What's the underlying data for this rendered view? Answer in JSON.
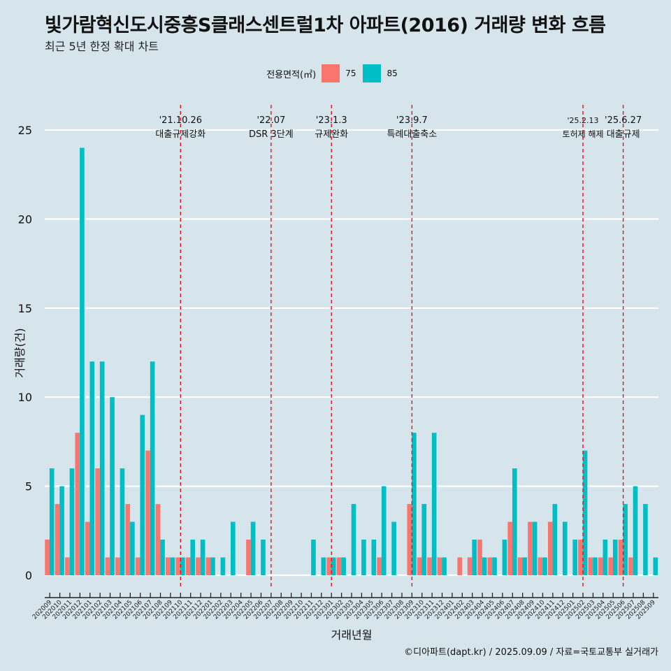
{
  "title": "빛가람혁신도시중흥S클래스센트럴1차 아파트(2016) 거래량 변화 흐름",
  "subtitle": "최근 5년 한정 확대 차트",
  "caption": "©디아파트(dapt.kr) / 2025.09.09 / 자료=국토교통부 실거래가",
  "legend": {
    "title": "전용면적(㎡)",
    "items": [
      {
        "label": "75",
        "color": "#f8766d"
      },
      {
        "label": "85",
        "color": "#00bfc4"
      }
    ]
  },
  "chart_data": {
    "type": "bar",
    "xlabel": "거래년월",
    "ylabel": "거래량(건)",
    "ylim": [
      0,
      25
    ],
    "yticks": [
      0,
      5,
      10,
      15,
      20,
      25
    ],
    "grid": true,
    "legend_position": "top",
    "categories": [
      "202009",
      "202010",
      "202011",
      "202012",
      "202101",
      "202102",
      "202103",
      "202104",
      "202105",
      "202106",
      "202107",
      "202108",
      "202109",
      "202110",
      "202111",
      "202112",
      "202201",
      "202202",
      "202203",
      "202204",
      "202205",
      "202206",
      "202207",
      "202208",
      "202209",
      "202210",
      "202211",
      "202212",
      "202301",
      "202302",
      "202303",
      "202304",
      "202305",
      "202306",
      "202307",
      "202308",
      "202309",
      "202310",
      "202311",
      "202312",
      "202401",
      "202402",
      "202403",
      "202404",
      "202405",
      "202406",
      "202407",
      "202408",
      "202409",
      "202410",
      "202411",
      "202412",
      "202501",
      "202502",
      "202503",
      "202504",
      "202505",
      "202506",
      "202507",
      "202508",
      "202509"
    ],
    "series": [
      {
        "name": "75",
        "color": "#f8766d",
        "values": [
          2,
          4,
          1,
          8,
          3,
          6,
          1,
          1,
          4,
          1,
          7,
          4,
          1,
          1,
          1,
          1,
          1,
          0,
          0,
          0,
          2,
          0,
          0,
          0,
          0,
          0,
          0,
          0,
          1,
          1,
          0,
          0,
          0,
          1,
          0,
          0,
          4,
          1,
          1,
          1,
          0,
          1,
          1,
          2,
          1,
          0,
          3,
          1,
          3,
          1,
          3,
          0,
          0,
          2,
          1,
          1,
          1,
          2,
          1,
          0,
          0
        ]
      },
      {
        "name": "85",
        "color": "#00bfc4",
        "values": [
          6,
          5,
          6,
          24,
          12,
          12,
          10,
          6,
          3,
          9,
          12,
          2,
          1,
          1,
          2,
          2,
          1,
          1,
          3,
          0,
          3,
          2,
          0,
          0,
          0,
          0,
          2,
          1,
          1,
          1,
          4,
          2,
          2,
          5,
          3,
          0,
          8,
          4,
          8,
          1,
          0,
          0,
          2,
          1,
          1,
          2,
          6,
          1,
          3,
          1,
          4,
          3,
          2,
          7,
          1,
          2,
          2,
          4,
          5,
          4,
          1
        ]
      }
    ],
    "annotations": [
      {
        "category": "202110",
        "date": "'21.10.26",
        "text": "대출규제강화"
      },
      {
        "category": "202207",
        "date": "'22.07",
        "text": "DSR 3단계"
      },
      {
        "category": "202301",
        "date": "'23.1.3",
        "text": "규제완화"
      },
      {
        "category": "202309",
        "date": "'23.9.7",
        "text": "특례대출축소"
      },
      {
        "category": "202502",
        "date": "'25.2.13",
        "text": "토허제 해제"
      },
      {
        "category": "202506",
        "date": "'25.6.27",
        "text": "대출규제"
      }
    ]
  }
}
